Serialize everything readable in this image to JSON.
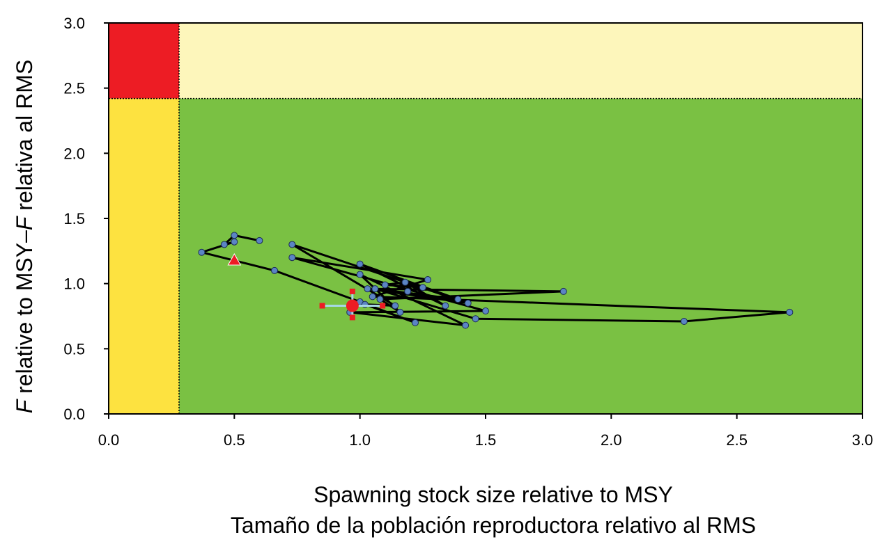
{
  "chart_data": {
    "type": "scatter",
    "title": "",
    "xlabel": "Spawning stock size relative to MSY",
    "xlabel_es": "Tamaño de la población reproductora relativo al RMS",
    "ylabel_f1": "F",
    "ylabel_mid": " relative to MSY–",
    "ylabel_f2": "F",
    "ylabel_end": " relativa al RMS",
    "xlim": [
      0,
      3
    ],
    "ylim": [
      0,
      3
    ],
    "x_ticks": [
      "0.0",
      "0.5",
      "1.0",
      "1.5",
      "2.0",
      "2.5",
      "3.0"
    ],
    "y_ticks": [
      "0.0",
      "0.5",
      "1.0",
      "1.5",
      "2.0",
      "2.5",
      "3.0"
    ],
    "grid": false,
    "reference_lines": {
      "x": 0.28,
      "y": 2.42
    },
    "zones": [
      {
        "name": "red",
        "x": [
          0,
          0.28
        ],
        "y": [
          2.42,
          3
        ],
        "color": "#ed1c24"
      },
      {
        "name": "light-yellow",
        "x": [
          0.28,
          3
        ],
        "y": [
          2.42,
          3
        ],
        "color": "#fdf6bb"
      },
      {
        "name": "yellow",
        "x": [
          0,
          0.28
        ],
        "y": [
          0,
          2.42
        ],
        "color": "#fde240"
      },
      {
        "name": "green",
        "x": [
          0.28,
          3
        ],
        "y": [
          0,
          2.42
        ],
        "color": "#7ac143"
      }
    ],
    "series": [
      {
        "points": [
          [
            0.6,
            1.33
          ],
          [
            0.5,
            1.37
          ],
          [
            0.46,
            1.3
          ],
          [
            0.5,
            1.32
          ],
          [
            0.37,
            1.24
          ],
          [
            0.66,
            1.1
          ],
          [
            1.0,
            0.86
          ],
          [
            1.22,
            0.7
          ],
          [
            1.02,
            0.84
          ],
          [
            1.14,
            0.83
          ],
          [
            0.73,
            1.3
          ],
          [
            1.43,
            0.85
          ],
          [
            1.03,
            0.96
          ],
          [
            1.81,
            0.94
          ],
          [
            1.08,
            0.88
          ],
          [
            1.16,
            0.78
          ],
          [
            1.0,
            1.07
          ],
          [
            1.42,
            0.68
          ],
          [
            0.96,
            0.78
          ],
          [
            1.5,
            0.79
          ],
          [
            0.73,
            1.2
          ],
          [
            1.27,
            1.03
          ],
          [
            1.05,
            0.9
          ],
          [
            2.71,
            0.78
          ],
          [
            2.29,
            0.71
          ],
          [
            1.46,
            0.73
          ],
          [
            1.06,
            0.96
          ],
          [
            1.39,
            0.88
          ],
          [
            1.0,
            1.15
          ],
          [
            1.34,
            0.83
          ],
          [
            1.18,
            1.01
          ],
          [
            1.1,
            0.99
          ],
          [
            1.25,
            0.97
          ],
          [
            1.19,
            0.94
          ]
        ],
        "line_color": "#000000",
        "marker_color": "#5b84c4"
      }
    ],
    "start_marker": {
      "x": 0.5,
      "y": 1.18,
      "shape": "triangle",
      "color": "#ed1c24"
    },
    "current_estimate": {
      "x": 0.97,
      "y": 0.83,
      "x_interval": [
        0.85,
        1.09
      ],
      "y_interval": [
        0.74,
        0.94
      ],
      "color": "#ed1c24",
      "interval_color": "#a6d8e6"
    }
  }
}
